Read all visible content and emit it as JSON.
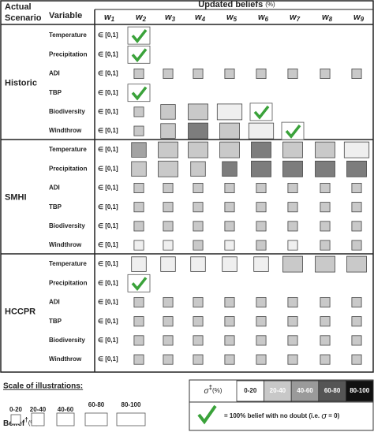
{
  "header": {
    "scenario_label": [
      "Actual",
      "Scenario"
    ],
    "variable_label": "Variable",
    "beliefs_label": "Updated beliefs",
    "beliefs_unit": "(%)",
    "columns": [
      {
        "symbol": "w",
        "sub": "1"
      },
      {
        "symbol": "w",
        "sub": "2"
      },
      {
        "symbol": "w",
        "sub": "3"
      },
      {
        "symbol": "w",
        "sub": "4"
      },
      {
        "symbol": "w",
        "sub": "5"
      },
      {
        "symbol": "w",
        "sub": "6"
      },
      {
        "symbol": "w",
        "sub": "7"
      },
      {
        "symbol": "w",
        "sub": "8"
      },
      {
        "symbol": "w",
        "sub": "9"
      }
    ]
  },
  "w1_value": "∈ [0,1]",
  "scenarios": [
    {
      "name": "Historic",
      "rows": [
        {
          "variable": "Temperature",
          "cells": [
            {
              "belief": 100,
              "sigma": 0
            },
            null,
            null,
            null,
            null,
            null,
            null,
            null
          ]
        },
        {
          "variable": "Precipitation",
          "cells": [
            {
              "belief": 100,
              "sigma": 0
            },
            null,
            null,
            null,
            null,
            null,
            null,
            null
          ]
        },
        {
          "variable": "ADI",
          "cells": [
            {
              "belief": 10,
              "sigma": 30
            },
            {
              "belief": 10,
              "sigma": 30
            },
            {
              "belief": 10,
              "sigma": 30
            },
            {
              "belief": 10,
              "sigma": 30
            },
            {
              "belief": 10,
              "sigma": 30
            },
            {
              "belief": 10,
              "sigma": 30
            },
            {
              "belief": 10,
              "sigma": 30
            },
            {
              "belief": 10,
              "sigma": 30
            }
          ]
        },
        {
          "variable": "TBP",
          "cells": [
            {
              "belief": 100,
              "sigma": 0
            },
            null,
            null,
            null,
            null,
            null,
            null,
            null
          ]
        },
        {
          "variable": "Biodiversity",
          "cells": [
            {
              "belief": 10,
              "sigma": 30
            },
            {
              "belief": 30,
              "sigma": 30
            },
            {
              "belief": 50,
              "sigma": 30
            },
            {
              "belief": 70,
              "sigma": 10
            },
            {
              "belief": 100,
              "sigma": 0
            },
            null,
            null,
            null
          ]
        },
        {
          "variable": "Windthrow",
          "cells": [
            {
              "belief": 10,
              "sigma": 30
            },
            {
              "belief": 30,
              "sigma": 30
            },
            {
              "belief": 50,
              "sigma": 70
            },
            {
              "belief": 50,
              "sigma": 30
            },
            {
              "belief": 70,
              "sigma": 10
            },
            {
              "belief": 100,
              "sigma": 0
            },
            null,
            null
          ]
        }
      ]
    },
    {
      "name": "SMHI",
      "rows": [
        {
          "variable": "Temperature",
          "cells": [
            {
              "belief": 30,
              "sigma": 50
            },
            {
              "belief": 50,
              "sigma": 30
            },
            {
              "belief": 50,
              "sigma": 30
            },
            {
              "belief": 50,
              "sigma": 30
            },
            {
              "belief": 50,
              "sigma": 70
            },
            {
              "belief": 50,
              "sigma": 30
            },
            {
              "belief": 50,
              "sigma": 30
            },
            {
              "belief": 70,
              "sigma": 10
            }
          ]
        },
        {
          "variable": "Precipitation",
          "cells": [
            {
              "belief": 30,
              "sigma": 30
            },
            {
              "belief": 50,
              "sigma": 30
            },
            {
              "belief": 30,
              "sigma": 30
            },
            {
              "belief": 30,
              "sigma": 70
            },
            {
              "belief": 50,
              "sigma": 70
            },
            {
              "belief": 50,
              "sigma": 70
            },
            {
              "belief": 50,
              "sigma": 70
            },
            {
              "belief": 50,
              "sigma": 70
            }
          ]
        },
        {
          "variable": "ADI",
          "cells": [
            {
              "belief": 10,
              "sigma": 30
            },
            {
              "belief": 10,
              "sigma": 30
            },
            {
              "belief": 10,
              "sigma": 30
            },
            {
              "belief": 10,
              "sigma": 30
            },
            {
              "belief": 10,
              "sigma": 30
            },
            {
              "belief": 10,
              "sigma": 30
            },
            {
              "belief": 10,
              "sigma": 30
            },
            {
              "belief": 10,
              "sigma": 30
            }
          ]
        },
        {
          "variable": "TBP",
          "cells": [
            {
              "belief": 10,
              "sigma": 30
            },
            {
              "belief": 10,
              "sigma": 30
            },
            {
              "belief": 10,
              "sigma": 30
            },
            {
              "belief": 10,
              "sigma": 30
            },
            {
              "belief": 10,
              "sigma": 30
            },
            {
              "belief": 10,
              "sigma": 30
            },
            {
              "belief": 10,
              "sigma": 30
            },
            {
              "belief": 10,
              "sigma": 30
            }
          ]
        },
        {
          "variable": "Biodiversity",
          "cells": [
            {
              "belief": 10,
              "sigma": 30
            },
            {
              "belief": 10,
              "sigma": 30
            },
            {
              "belief": 10,
              "sigma": 30
            },
            {
              "belief": 10,
              "sigma": 30
            },
            {
              "belief": 10,
              "sigma": 30
            },
            {
              "belief": 10,
              "sigma": 30
            },
            {
              "belief": 10,
              "sigma": 30
            },
            {
              "belief": 10,
              "sigma": 30
            }
          ]
        },
        {
          "variable": "Windthrow",
          "cells": [
            {
              "belief": 10,
              "sigma": 10
            },
            {
              "belief": 10,
              "sigma": 10
            },
            {
              "belief": 10,
              "sigma": 30
            },
            {
              "belief": 10,
              "sigma": 10
            },
            {
              "belief": 10,
              "sigma": 30
            },
            {
              "belief": 10,
              "sigma": 10
            },
            {
              "belief": 10,
              "sigma": 30
            },
            {
              "belief": 10,
              "sigma": 30
            }
          ]
        }
      ]
    },
    {
      "name": "HCCPR",
      "rows": [
        {
          "variable": "Temperature",
          "cells": [
            {
              "belief": 30,
              "sigma": 10
            },
            {
              "belief": 30,
              "sigma": 10
            },
            {
              "belief": 30,
              "sigma": 10
            },
            {
              "belief": 30,
              "sigma": 10
            },
            {
              "belief": 30,
              "sigma": 10
            },
            {
              "belief": 50,
              "sigma": 30
            },
            {
              "belief": 50,
              "sigma": 30
            },
            {
              "belief": 50,
              "sigma": 30
            }
          ]
        },
        {
          "variable": "Precipitation",
          "cells": [
            {
              "belief": 100,
              "sigma": 0
            },
            null,
            null,
            null,
            null,
            null,
            null,
            null
          ]
        },
        {
          "variable": "ADI",
          "cells": [
            {
              "belief": 10,
              "sigma": 30
            },
            {
              "belief": 10,
              "sigma": 30
            },
            {
              "belief": 10,
              "sigma": 30
            },
            {
              "belief": 10,
              "sigma": 30
            },
            {
              "belief": 10,
              "sigma": 30
            },
            {
              "belief": 10,
              "sigma": 30
            },
            {
              "belief": 10,
              "sigma": 30
            },
            {
              "belief": 10,
              "sigma": 30
            }
          ]
        },
        {
          "variable": "TBP",
          "cells": [
            {
              "belief": 10,
              "sigma": 30
            },
            {
              "belief": 10,
              "sigma": 30
            },
            {
              "belief": 10,
              "sigma": 30
            },
            {
              "belief": 10,
              "sigma": 30
            },
            {
              "belief": 10,
              "sigma": 30
            },
            {
              "belief": 10,
              "sigma": 30
            },
            {
              "belief": 10,
              "sigma": 30
            },
            {
              "belief": 10,
              "sigma": 30
            }
          ]
        },
        {
          "variable": "Biodiversity",
          "cells": [
            {
              "belief": 10,
              "sigma": 30
            },
            {
              "belief": 10,
              "sigma": 30
            },
            {
              "belief": 10,
              "sigma": 30
            },
            {
              "belief": 10,
              "sigma": 30
            },
            {
              "belief": 10,
              "sigma": 30
            },
            {
              "belief": 10,
              "sigma": 30
            },
            {
              "belief": 10,
              "sigma": 30
            },
            {
              "belief": 10,
              "sigma": 30
            }
          ]
        },
        {
          "variable": "Windthrow",
          "cells": [
            {
              "belief": 10,
              "sigma": 30
            },
            {
              "belief": 10,
              "sigma": 30
            },
            {
              "belief": 10,
              "sigma": 30
            },
            {
              "belief": 10,
              "sigma": 30
            },
            {
              "belief": 10,
              "sigma": 30
            },
            {
              "belief": 10,
              "sigma": 30
            },
            {
              "belief": 10,
              "sigma": 30
            },
            {
              "belief": 10,
              "sigma": 30
            }
          ]
        }
      ]
    }
  ],
  "legend": {
    "title": "Scale of illustrations:",
    "belief_label": "Belief",
    "belief_mark": "†",
    "belief_unit": "(%)",
    "belief_bins": [
      "0-20",
      "20-40",
      "40-60",
      "60-80",
      "80-100"
    ],
    "sigma_symbol": "σ",
    "sigma_mark": "‡",
    "sigma_unit": "(%)",
    "sigma_bins": [
      "0-20",
      "20-40",
      "40-60",
      "60-80",
      "80-100"
    ],
    "check_note": "= 100% belief with no doubt (i.e.",
    "check_sigma": "σ",
    "check_eq": "= 0)"
  }
}
